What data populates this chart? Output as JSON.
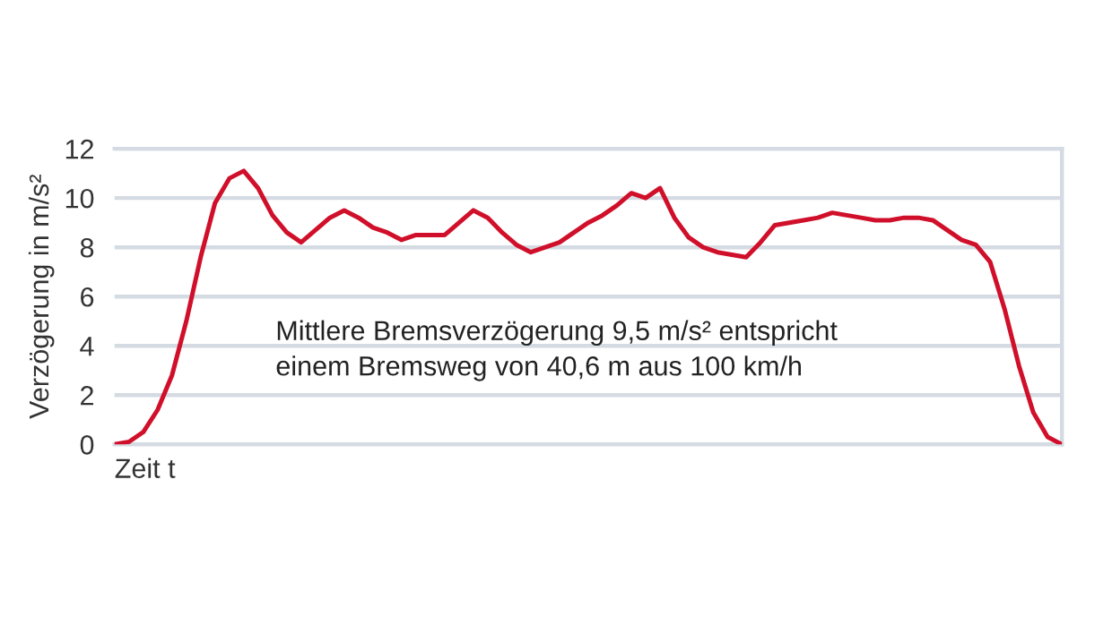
{
  "chart_data": {
    "type": "line",
    "ylabel": "Verzögerung in m/s²",
    "xlabel": "Zeit t",
    "annotations": [
      "Mittlere Bremsverzögerung 9,5 m/s² entspricht\neinem Bremsweg von 40,6 m aus 100 km/h"
    ],
    "categories": [
      null,
      null,
      null,
      null,
      null,
      null,
      null,
      null,
      null,
      null,
      null,
      null,
      null,
      null,
      null,
      null,
      null,
      null,
      null,
      null,
      null,
      null,
      null,
      null,
      null,
      null,
      null,
      null,
      null,
      null,
      null,
      null,
      null,
      null,
      null,
      null,
      null,
      null,
      null,
      null,
      null,
      null,
      null,
      null,
      null,
      null,
      null,
      null,
      null,
      null,
      null,
      null,
      null,
      null,
      null,
      null,
      null,
      null,
      null,
      null,
      null,
      null,
      null,
      null,
      null,
      null,
      null
    ],
    "series": [
      {
        "color": "#d0102a",
        "values": [
          0.0,
          0.1,
          0.5,
          1.4,
          2.8,
          5.0,
          7.6,
          9.8,
          10.8,
          11.1,
          10.4,
          9.3,
          8.6,
          8.2,
          8.7,
          9.2,
          9.5,
          9.2,
          8.8,
          8.6,
          8.3,
          8.5,
          8.5,
          8.5,
          9.0,
          9.5,
          9.2,
          8.6,
          8.1,
          7.8,
          8.0,
          8.2,
          8.6,
          9.0,
          9.3,
          9.7,
          10.2,
          10.0,
          10.4,
          9.2,
          8.4,
          8.0,
          7.8,
          7.7,
          7.6,
          8.2,
          8.9,
          9.0,
          9.1,
          9.2,
          9.4,
          9.3,
          9.2,
          9.1,
          9.1,
          9.2,
          9.2,
          9.1,
          8.7,
          8.3,
          8.1,
          7.4,
          5.5,
          3.2,
          1.3,
          0.3,
          0.0
        ]
      }
    ],
    "ylim": [
      0,
      12
    ],
    "yticks": [
      0,
      2,
      4,
      6,
      8,
      10,
      12
    ],
    "grid": "y",
    "marker": "none",
    "line_style": "solid"
  }
}
